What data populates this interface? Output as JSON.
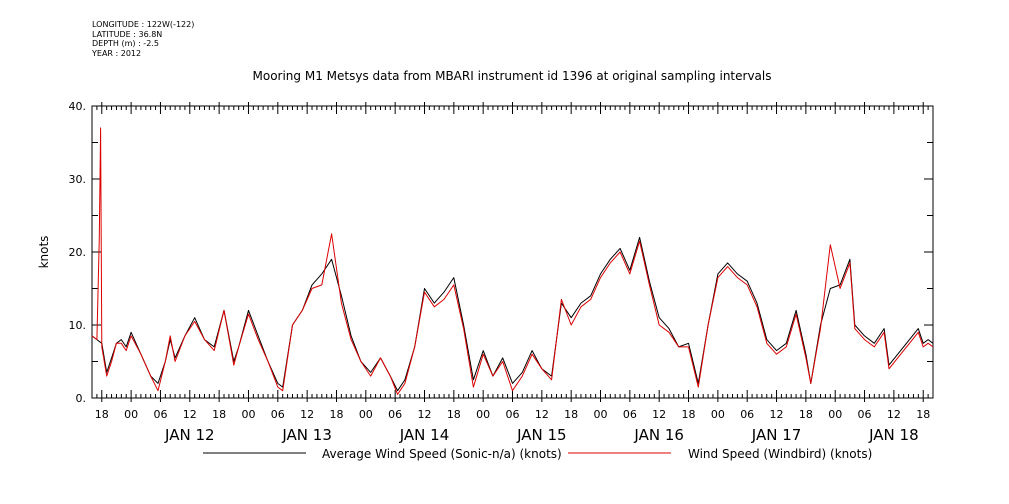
{
  "header": {
    "longitude": "LONGITUDE : 122W(-122)",
    "latitude": "LATITUDE : 36.8N",
    "depth": "DEPTH (m) : -2.5",
    "year": "YEAR : 2012"
  },
  "chart_data": {
    "type": "line",
    "title": "Mooring M1 Metsys data from MBARI instrument id 1396 at original sampling intervals",
    "ylabel": "knots",
    "ylim": [
      0,
      40
    ],
    "yticks": [
      0,
      10,
      20,
      30,
      40
    ],
    "ytick_labels": [
      "0.",
      "10.",
      "20.",
      "30.",
      "40."
    ],
    "xlim_days": [
      "2012-01-11T16:00",
      "2012-01-18T20:00"
    ],
    "hour_tick_labels": [
      "00",
      "06",
      "12",
      "18"
    ],
    "day_labels": [
      {
        "date": "2012-01-12",
        "label": "JAN 12"
      },
      {
        "date": "2012-01-13",
        "label": "JAN 13"
      },
      {
        "date": "2012-01-14",
        "label": "JAN 14"
      },
      {
        "date": "2012-01-15",
        "label": "JAN 15"
      },
      {
        "date": "2012-01-16",
        "label": "JAN 16"
      },
      {
        "date": "2012-01-17",
        "label": "JAN 17"
      },
      {
        "date": "2012-01-18",
        "label": "JAN 18"
      }
    ],
    "grid": false,
    "legend_position": "bottom",
    "series": [
      {
        "name": "Average Wind Speed (Sonic-n/a) (knots)",
        "color": "#000000",
        "points": [
          [
            "2012-01-11T16:00",
            8.5
          ],
          [
            "2012-01-11T17:00",
            8.0
          ],
          [
            "2012-01-11T18:00",
            7.5
          ],
          [
            "2012-01-11T19:00",
            3.5
          ],
          [
            "2012-01-11T20:00",
            5.5
          ],
          [
            "2012-01-11T21:00",
            7.5
          ],
          [
            "2012-01-11T22:00",
            8.0
          ],
          [
            "2012-01-11T23:00",
            7.0
          ],
          [
            "2012-01-12T00:00",
            9.0
          ],
          [
            "2012-01-12T02:00",
            6.0
          ],
          [
            "2012-01-12T04:00",
            3.0
          ],
          [
            "2012-01-12T05:30",
            2.0
          ],
          [
            "2012-01-12T07:00",
            5.0
          ],
          [
            "2012-01-12T08:00",
            8.0
          ],
          [
            "2012-01-12T09:00",
            5.5
          ],
          [
            "2012-01-12T11:00",
            8.5
          ],
          [
            "2012-01-12T13:00",
            11.0
          ],
          [
            "2012-01-12T15:00",
            8.0
          ],
          [
            "2012-01-12T17:00",
            7.0
          ],
          [
            "2012-01-12T19:00",
            12.0
          ],
          [
            "2012-01-12T21:00",
            5.0
          ],
          [
            "2012-01-12T22:00",
            7.0
          ],
          [
            "2012-01-13T00:00",
            12.0
          ],
          [
            "2012-01-13T02:00",
            8.5
          ],
          [
            "2012-01-13T04:00",
            5.0
          ],
          [
            "2012-01-13T06:00",
            2.0
          ],
          [
            "2012-01-13T07:00",
            1.5
          ],
          [
            "2012-01-13T09:00",
            10.0
          ],
          [
            "2012-01-13T11:00",
            12.0
          ],
          [
            "2012-01-13T13:00",
            15.5
          ],
          [
            "2012-01-13T15:00",
            17.0
          ],
          [
            "2012-01-13T17:00",
            19.0
          ],
          [
            "2012-01-13T19:00",
            14.0
          ],
          [
            "2012-01-13T21:00",
            8.5
          ],
          [
            "2012-01-13T23:00",
            5.0
          ],
          [
            "2012-01-14T01:00",
            3.5
          ],
          [
            "2012-01-14T03:00",
            5.5
          ],
          [
            "2012-01-14T05:00",
            3.0
          ],
          [
            "2012-01-14T06:30",
            1.0
          ],
          [
            "2012-01-14T08:00",
            2.5
          ],
          [
            "2012-01-14T10:00",
            7.0
          ],
          [
            "2012-01-14T12:00",
            15.0
          ],
          [
            "2012-01-14T14:00",
            13.0
          ],
          [
            "2012-01-14T16:00",
            14.5
          ],
          [
            "2012-01-14T18:00",
            16.5
          ],
          [
            "2012-01-14T20:00",
            10.0
          ],
          [
            "2012-01-14T22:00",
            2.5
          ],
          [
            "2012-01-15T00:00",
            6.5
          ],
          [
            "2012-01-15T02:00",
            3.0
          ],
          [
            "2012-01-15T04:00",
            5.5
          ],
          [
            "2012-01-15T06:00",
            2.0
          ],
          [
            "2012-01-15T08:00",
            3.5
          ],
          [
            "2012-01-15T10:00",
            6.5
          ],
          [
            "2012-01-15T12:00",
            4.0
          ],
          [
            "2012-01-15T14:00",
            3.0
          ],
          [
            "2012-01-15T16:00",
            13.0
          ],
          [
            "2012-01-15T18:00",
            11.0
          ],
          [
            "2012-01-15T20:00",
            13.0
          ],
          [
            "2012-01-15T22:00",
            14.0
          ],
          [
            "2012-01-16T00:00",
            17.0
          ],
          [
            "2012-01-16T02:00",
            19.0
          ],
          [
            "2012-01-16T04:00",
            20.5
          ],
          [
            "2012-01-16T06:00",
            17.5
          ],
          [
            "2012-01-16T08:00",
            22.0
          ],
          [
            "2012-01-16T10:00",
            16.0
          ],
          [
            "2012-01-16T12:00",
            11.0
          ],
          [
            "2012-01-16T14:00",
            9.5
          ],
          [
            "2012-01-16T16:00",
            7.0
          ],
          [
            "2012-01-16T18:00",
            7.5
          ],
          [
            "2012-01-16T20:00",
            2.0
          ],
          [
            "2012-01-16T22:00",
            10.0
          ],
          [
            "2012-01-17T00:00",
            17.0
          ],
          [
            "2012-01-17T02:00",
            18.5
          ],
          [
            "2012-01-17T04:00",
            17.0
          ],
          [
            "2012-01-17T06:00",
            16.0
          ],
          [
            "2012-01-17T08:00",
            13.0
          ],
          [
            "2012-01-17T10:00",
            8.0
          ],
          [
            "2012-01-17T12:00",
            6.5
          ],
          [
            "2012-01-17T14:00",
            7.5
          ],
          [
            "2012-01-17T16:00",
            12.0
          ],
          [
            "2012-01-17T18:00",
            6.0
          ],
          [
            "2012-01-17T19:00",
            2.0
          ],
          [
            "2012-01-17T21:00",
            10.0
          ],
          [
            "2012-01-17T23:00",
            15.0
          ],
          [
            "2012-01-18T01:00",
            15.5
          ],
          [
            "2012-01-18T03:00",
            19.0
          ],
          [
            "2012-01-18T04:00",
            10.0
          ],
          [
            "2012-01-18T06:00",
            8.5
          ],
          [
            "2012-01-18T08:00",
            7.5
          ],
          [
            "2012-01-18T10:00",
            9.5
          ],
          [
            "2012-01-18T11:00",
            4.5
          ],
          [
            "2012-01-18T17:00",
            9.5
          ],
          [
            "2012-01-18T18:00",
            7.5
          ],
          [
            "2012-01-18T19:00",
            8.0
          ],
          [
            "2012-01-18T20:00",
            7.5
          ]
        ]
      },
      {
        "name": "Wind Speed (Windbird) (knots)",
        "color": "#dd0000",
        "points": [
          [
            "2012-01-11T16:00",
            8.5
          ],
          [
            "2012-01-11T17:00",
            8.0
          ],
          [
            "2012-01-11T17:30",
            22.0
          ],
          [
            "2012-01-11T17:45",
            37.0
          ],
          [
            "2012-01-11T18:00",
            7.0
          ],
          [
            "2012-01-11T19:00",
            3.0
          ],
          [
            "2012-01-11T20:00",
            5.0
          ],
          [
            "2012-01-11T21:00",
            7.5
          ],
          [
            "2012-01-11T22:00",
            7.5
          ],
          [
            "2012-01-11T23:00",
            6.5
          ],
          [
            "2012-01-12T00:00",
            8.5
          ],
          [
            "2012-01-12T02:00",
            6.0
          ],
          [
            "2012-01-12T04:00",
            3.0
          ],
          [
            "2012-01-12T05:30",
            1.0
          ],
          [
            "2012-01-12T07:00",
            5.0
          ],
          [
            "2012-01-12T08:00",
            8.5
          ],
          [
            "2012-01-12T09:00",
            5.0
          ],
          [
            "2012-01-12T11:00",
            8.5
          ],
          [
            "2012-01-12T13:00",
            10.5
          ],
          [
            "2012-01-12T15:00",
            8.0
          ],
          [
            "2012-01-12T17:00",
            6.5
          ],
          [
            "2012-01-12T19:00",
            12.0
          ],
          [
            "2012-01-12T21:00",
            4.5
          ],
          [
            "2012-01-12T22:00",
            7.0
          ],
          [
            "2012-01-13T00:00",
            11.5
          ],
          [
            "2012-01-13T02:00",
            8.0
          ],
          [
            "2012-01-13T04:00",
            5.0
          ],
          [
            "2012-01-13T06:00",
            1.5
          ],
          [
            "2012-01-13T07:00",
            1.0
          ],
          [
            "2012-01-13T09:00",
            10.0
          ],
          [
            "2012-01-13T11:00",
            12.0
          ],
          [
            "2012-01-13T13:00",
            15.0
          ],
          [
            "2012-01-13T15:00",
            15.5
          ],
          [
            "2012-01-13T17:00",
            22.5
          ],
          [
            "2012-01-13T19:00",
            13.0
          ],
          [
            "2012-01-13T21:00",
            8.0
          ],
          [
            "2012-01-13T23:00",
            5.0
          ],
          [
            "2012-01-14T01:00",
            3.0
          ],
          [
            "2012-01-14T03:00",
            5.5
          ],
          [
            "2012-01-14T05:00",
            3.0
          ],
          [
            "2012-01-14T06:30",
            0.5
          ],
          [
            "2012-01-14T08:00",
            2.0
          ],
          [
            "2012-01-14T10:00",
            7.0
          ],
          [
            "2012-01-14T12:00",
            14.5
          ],
          [
            "2012-01-14T14:00",
            12.5
          ],
          [
            "2012-01-14T16:00",
            13.5
          ],
          [
            "2012-01-14T18:00",
            15.5
          ],
          [
            "2012-01-14T20:00",
            9.5
          ],
          [
            "2012-01-14T22:00",
            1.5
          ],
          [
            "2012-01-15T00:00",
            6.0
          ],
          [
            "2012-01-15T02:00",
            3.0
          ],
          [
            "2012-01-15T04:00",
            5.0
          ],
          [
            "2012-01-15T06:00",
            1.0
          ],
          [
            "2012-01-15T08:00",
            3.0
          ],
          [
            "2012-01-15T10:00",
            6.0
          ],
          [
            "2012-01-15T12:00",
            4.0
          ],
          [
            "2012-01-15T14:00",
            2.5
          ],
          [
            "2012-01-15T16:00",
            13.5
          ],
          [
            "2012-01-15T18:00",
            10.0
          ],
          [
            "2012-01-15T20:00",
            12.5
          ],
          [
            "2012-01-15T22:00",
            13.5
          ],
          [
            "2012-01-16T00:00",
            16.5
          ],
          [
            "2012-01-16T02:00",
            18.5
          ],
          [
            "2012-01-16T04:00",
            20.0
          ],
          [
            "2012-01-16T06:00",
            17.0
          ],
          [
            "2012-01-16T08:00",
            21.5
          ],
          [
            "2012-01-16T10:00",
            15.5
          ],
          [
            "2012-01-16T12:00",
            10.0
          ],
          [
            "2012-01-16T14:00",
            9.0
          ],
          [
            "2012-01-16T16:00",
            7.0
          ],
          [
            "2012-01-16T18:00",
            7.0
          ],
          [
            "2012-01-16T20:00",
            1.5
          ],
          [
            "2012-01-16T22:00",
            10.0
          ],
          [
            "2012-01-17T00:00",
            16.5
          ],
          [
            "2012-01-17T02:00",
            18.0
          ],
          [
            "2012-01-17T04:00",
            16.5
          ],
          [
            "2012-01-17T06:00",
            15.5
          ],
          [
            "2012-01-17T08:00",
            12.5
          ],
          [
            "2012-01-17T10:00",
            7.5
          ],
          [
            "2012-01-17T12:00",
            6.0
          ],
          [
            "2012-01-17T14:00",
            7.0
          ],
          [
            "2012-01-17T16:00",
            11.5
          ],
          [
            "2012-01-17T18:00",
            5.5
          ],
          [
            "2012-01-17T19:00",
            2.0
          ],
          [
            "2012-01-17T21:00",
            9.5
          ],
          [
            "2012-01-17T23:00",
            21.0
          ],
          [
            "2012-01-18T01:00",
            15.0
          ],
          [
            "2012-01-18T03:00",
            18.5
          ],
          [
            "2012-01-18T04:00",
            9.5
          ],
          [
            "2012-01-18T06:00",
            8.0
          ],
          [
            "2012-01-18T08:00",
            7.0
          ],
          [
            "2012-01-18T10:00",
            9.0
          ],
          [
            "2012-01-18T11:00",
            4.0
          ],
          [
            "2012-01-18T17:00",
            9.0
          ],
          [
            "2012-01-18T18:00",
            7.0
          ],
          [
            "2012-01-18T19:00",
            7.5
          ],
          [
            "2012-01-18T20:00",
            7.0
          ]
        ]
      }
    ]
  }
}
